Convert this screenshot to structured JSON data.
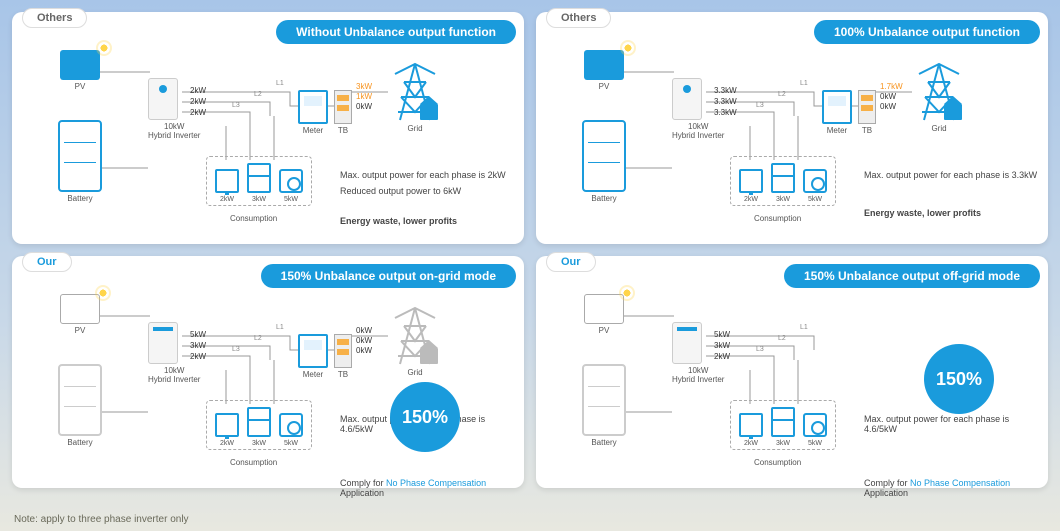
{
  "footer": "Note: apply to three phase inverter only",
  "colors": {
    "accent": "#1a9bdc",
    "warn": "#f7931e",
    "text": "#444444",
    "wire": "#888888"
  },
  "common_labels": {
    "pv": "PV",
    "inverter_top": "10kW",
    "inverter_bot": "Hybrid Inverter",
    "battery": "Battery",
    "meter": "Meter",
    "tb": "TB",
    "grid": "Grid",
    "consumption": "Consumption"
  },
  "panels": [
    {
      "id": "p1",
      "tag": "Others",
      "tag_class": "others",
      "title": "Without Unbalance output function",
      "show_grid": true,
      "icon_theme": "blue",
      "phase_out": [
        "2kW",
        "2kW",
        "2kW"
      ],
      "grid_flow": [
        "3kW",
        "1kW",
        "0kW"
      ],
      "grid_flow_class": [
        "or",
        "or",
        ""
      ],
      "loads": [
        "2kW",
        "3kW",
        "5kW"
      ],
      "notes": [
        {
          "t": "Max. output power for each phase is 2kW"
        },
        {
          "t": "Reduced output power to 6kW"
        },
        {
          "t": "Energy waste, lower profits",
          "bold": true
        }
      ],
      "badge": null
    },
    {
      "id": "p2",
      "tag": "Others",
      "tag_class": "others",
      "title": "100% Unbalance output function",
      "show_grid": true,
      "icon_theme": "blue",
      "phase_out": [
        "3.3kW",
        "3.3kW",
        "3.3kW"
      ],
      "grid_flow": [
        "1.7kW",
        "0kW",
        "0kW"
      ],
      "grid_flow_class": [
        "or",
        "",
        ""
      ],
      "loads": [
        "2kW",
        "3kW",
        "5kW"
      ],
      "notes": [
        {
          "t": "Max. output power for each phase is 3.3kW"
        },
        {
          "t": "Energy waste, lower profits",
          "bold": true
        }
      ],
      "badge": null
    },
    {
      "id": "p3",
      "tag": "Our",
      "tag_class": "our",
      "title": "150% Unbalance output on-grid mode",
      "show_grid": true,
      "icon_theme": "white",
      "phase_out": [
        "5kW",
        "3kW",
        "2kW"
      ],
      "grid_flow": [
        "0kW",
        "0kW",
        "0kW"
      ],
      "grid_flow_class": [
        "",
        "",
        ""
      ],
      "loads": [
        "2kW",
        "3kW",
        "5kW"
      ],
      "notes": [
        {
          "t": "Max. output power for each phase is 4.6/5kW"
        },
        {
          "pre": "Comply for ",
          "hl": "No Phase Compensation",
          "post": " Application"
        }
      ],
      "badge": "150%"
    },
    {
      "id": "p4",
      "tag": "Our",
      "tag_class": "our",
      "title": "150% Unbalance output off-grid mode",
      "show_grid": false,
      "icon_theme": "white",
      "phase_out": [
        "5kW",
        "3kW",
        "2kW"
      ],
      "grid_flow": [],
      "grid_flow_class": [],
      "loads": [
        "2kW",
        "3kW",
        "5kW"
      ],
      "notes": [
        {
          "t": "Max. output power for each phase is 4.6/5kW"
        },
        {
          "pre": "Comply for ",
          "hl": "No Phase Compensation",
          "post": " Application"
        }
      ],
      "badge": "150%"
    }
  ]
}
